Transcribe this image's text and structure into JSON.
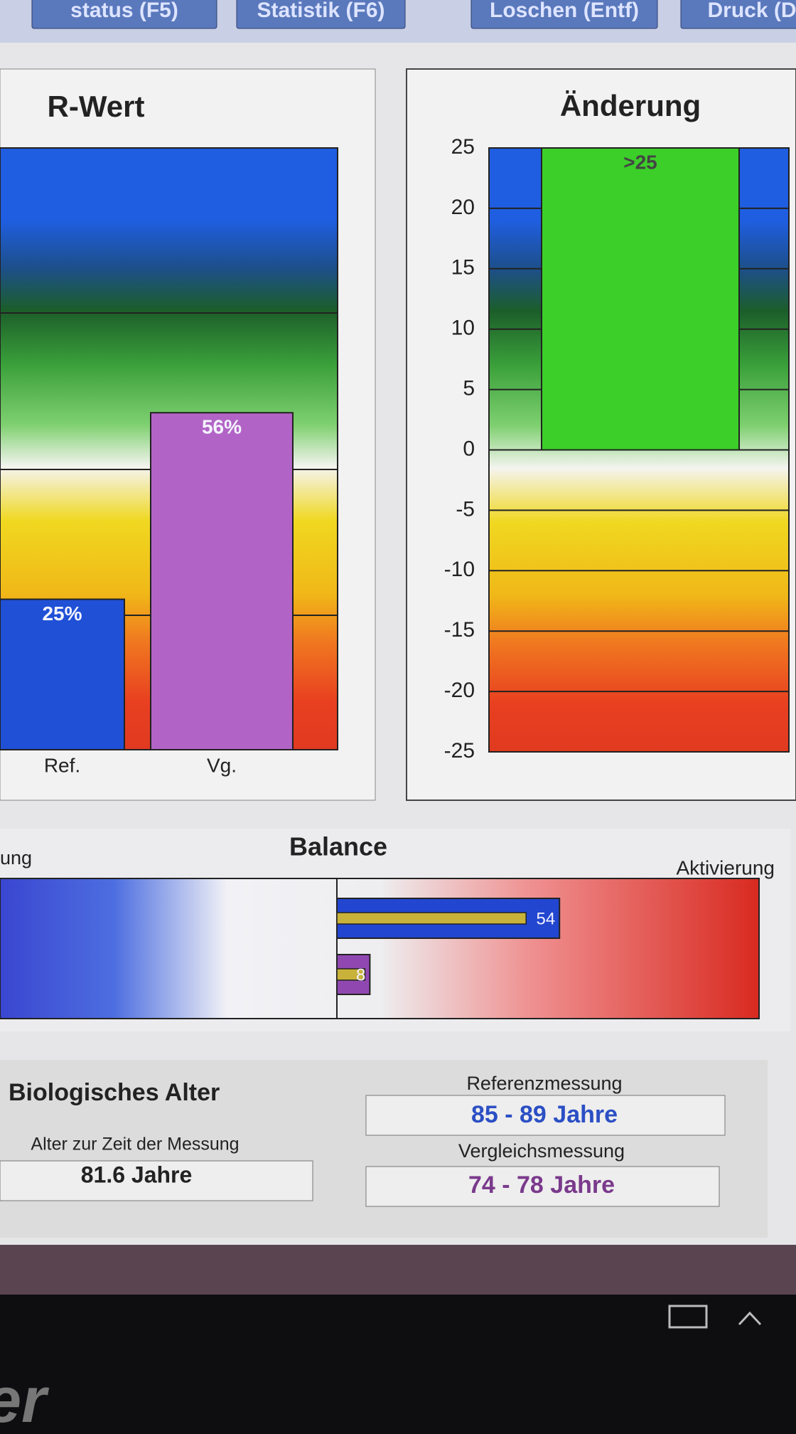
{
  "toolbar": {
    "buttons": [
      "status (F5)",
      "Statistik (F6)",
      "Loschen (Entf)",
      "Druck (D"
    ]
  },
  "chart_data": [
    {
      "type": "bar",
      "title": "R-Wert",
      "categories": [
        "Ref.",
        "Vg."
      ],
      "values": [
        25,
        56
      ],
      "value_labels": [
        "25%",
        "56%"
      ],
      "colors": [
        "#1f50d6",
        "#b264c6"
      ],
      "ylim": [
        0,
        100
      ]
    },
    {
      "type": "bar",
      "title": "Änderung",
      "categories": [
        null
      ],
      "values": [
        25
      ],
      "value_labels": [
        ">25"
      ],
      "color": "#3ccf2a",
      "ylim": [
        -25,
        25
      ],
      "yticks": [
        25,
        20,
        15,
        10,
        5,
        0,
        -5,
        -10,
        -15,
        -20,
        -25
      ],
      "grid": true
    },
    {
      "type": "barh",
      "title": "Balance",
      "left_label": "ung",
      "right_label": "Aktivierung",
      "values": [
        54,
        8
      ],
      "colors": [
        "#2246d0",
        "#9048b0"
      ],
      "inner_color": "#c9b23a",
      "xlim": [
        -100,
        100
      ]
    }
  ],
  "biological_age": {
    "title": "Biologisches Alter",
    "age_label": "Alter zur Zeit der Messung",
    "age": "81.6 Jahre",
    "reference_label": "Referenzmessung",
    "reference": "85 - 89 Jahre",
    "comparison_label": "Vergleichsmessung",
    "comparison": "74 - 78 Jahre"
  },
  "taskbar": {
    "logo": "er"
  }
}
